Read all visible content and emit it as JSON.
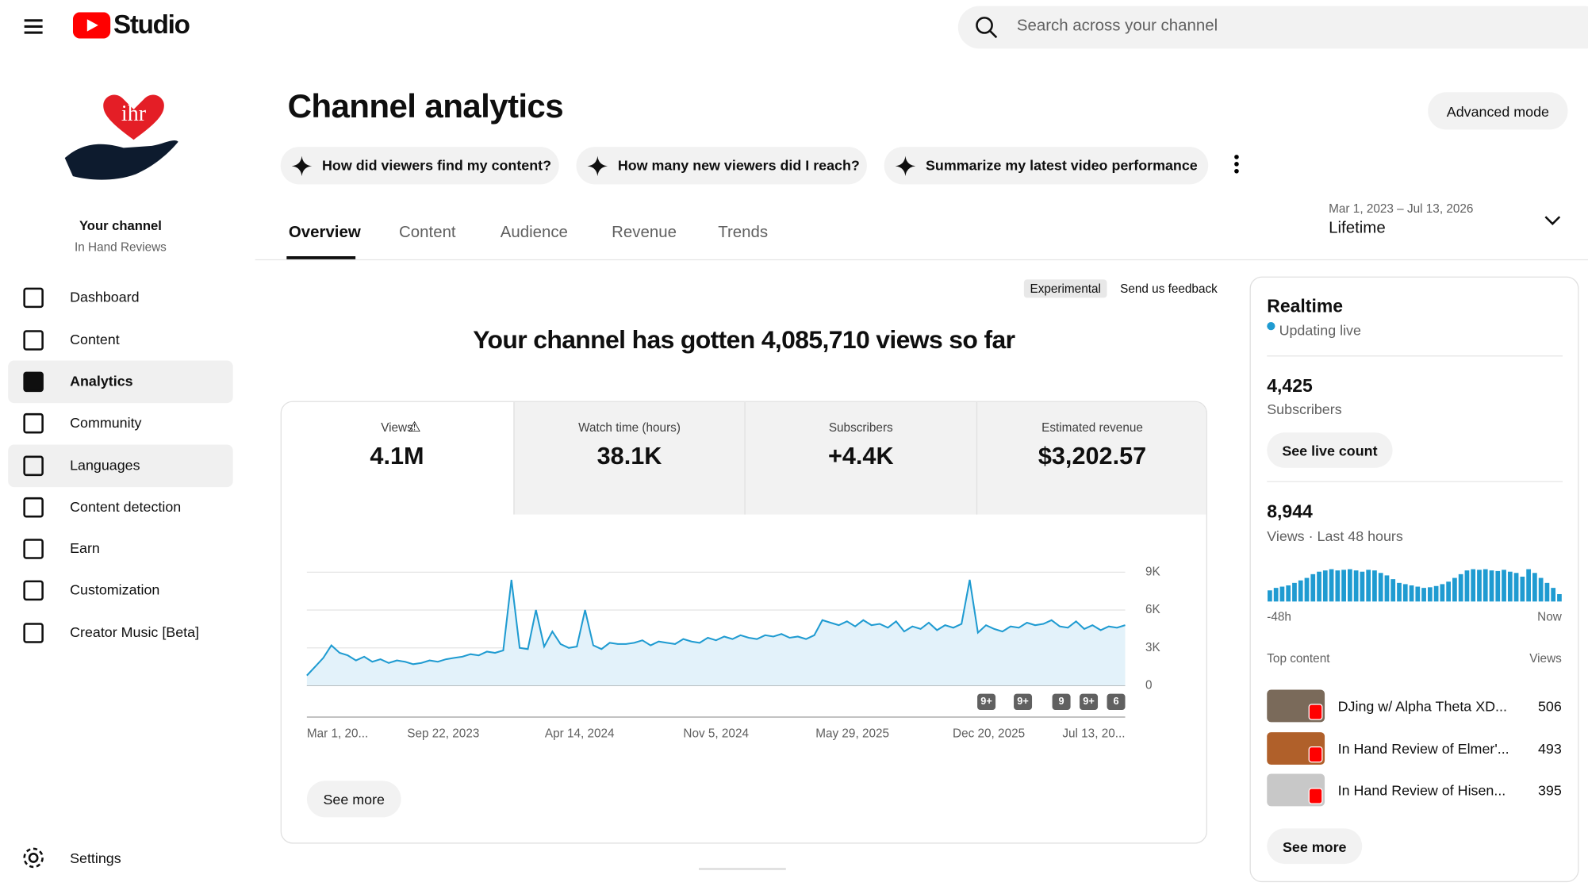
{
  "header": {
    "logo_text": "Studio",
    "search_placeholder": "Search across your channel"
  },
  "sidebar": {
    "logo_text": "ihr",
    "channel_label": "Your channel",
    "channel_name": "In Hand Reviews",
    "nav": [
      {
        "label": "Dashboard",
        "highlighted": false
      },
      {
        "label": "Content",
        "highlighted": false
      },
      {
        "label": "Analytics",
        "highlighted": true
      },
      {
        "label": "Community",
        "highlighted": false
      },
      {
        "label": "Languages",
        "highlighted": true
      },
      {
        "label": "Content detection",
        "highlighted": false
      },
      {
        "label": "Earn",
        "highlighted": false
      },
      {
        "label": "Customization",
        "highlighted": false
      },
      {
        "label": "Creator Music [Beta]",
        "highlighted": false
      }
    ],
    "settings": "Settings"
  },
  "main": {
    "title": "Channel analytics",
    "advanced_mode": "Advanced mode",
    "prompts": [
      "How did viewers find my content?",
      "How many new viewers did I reach?",
      "Summarize my latest video performance"
    ],
    "tabs": [
      "Overview",
      "Content",
      "Audience",
      "Revenue",
      "Trends"
    ],
    "date_range": "Mar 1, 2023 – Jul 13, 2026",
    "period": "Lifetime",
    "experimental": "Experimental",
    "feedback": "Send us feedback",
    "headline": "Your channel has gotten 4,085,710 views so far",
    "metrics": [
      {
        "label": "Views",
        "value": "4.1M"
      },
      {
        "label": "Watch time (hours)",
        "value": "38.1K"
      },
      {
        "label": "Subscribers",
        "value": "+4.4K"
      },
      {
        "label": "Estimated revenue",
        "value": "$3,202.57"
      }
    ],
    "see_more": "See more"
  },
  "chart_data": {
    "type": "line",
    "color": "#1f9bd1",
    "grid": true,
    "x_labels": [
      "Mar 1, 20...",
      "Sep 22, 2023",
      "Apr 14, 2024",
      "Nov 5, 2024",
      "May 29, 2025",
      "Dec 20, 2025",
      "Jul 13, 20..."
    ],
    "ylim": [
      0,
      9000
    ],
    "yticks": [
      0,
      {
        "value": 3000,
        "label": "3K"
      },
      {
        "value": 6000,
        "label": "6K"
      },
      {
        "value": 9000,
        "label": "9K"
      }
    ],
    "markers": [
      "9+",
      "9+",
      "9",
      "9+",
      "6"
    ],
    "values": [
      800,
      1500,
      2200,
      3200,
      2600,
      2400,
      2000,
      2300,
      1900,
      2100,
      1800,
      2000,
      1900,
      1700,
      1800,
      2000,
      1900,
      2100,
      2200,
      2300,
      2500,
      2400,
      2700,
      2600,
      2800,
      8400,
      3000,
      2900,
      6000,
      3100,
      4300,
      3300,
      3000,
      3100,
      6000,
      3200,
      2900,
      3400,
      3300,
      3300,
      3400,
      3600,
      3200,
      3500,
      3400,
      3300,
      3700,
      3500,
      3400,
      3800,
      3600,
      3900,
      3700,
      4000,
      3800,
      3700,
      4000,
      3900,
      4100,
      3800,
      3900,
      3700,
      4000,
      5200,
      5000,
      4800,
      5100,
      4700,
      5200,
      4800,
      4900,
      4600,
      5100,
      4300,
      4700,
      4500,
      5000,
      4400,
      4800,
      4600,
      4900,
      8400,
      4200,
      4800,
      4500,
      4300,
      4700,
      4600,
      5000,
      4800,
      4900,
      5200,
      4700,
      4600,
      5100,
      4500,
      4800,
      4400,
      4700,
      4600,
      4800
    ]
  },
  "realtime": {
    "title": "Realtime",
    "status": "Updating live",
    "subscribers_value": "4,425",
    "subscribers_label": "Subscribers",
    "see_live_count": "See live count",
    "views_value": "8,944",
    "views_label": "Views · Last 48 hours",
    "bars": {
      "type": "bar",
      "color": "#1f9bd1",
      "start_label": "-48h",
      "end_label": "Now",
      "values": [
        90,
        110,
        120,
        130,
        150,
        170,
        190,
        220,
        240,
        250,
        260,
        250,
        255,
        260,
        250,
        240,
        255,
        250,
        230,
        210,
        180,
        150,
        140,
        130,
        120,
        110,
        115,
        125,
        140,
        160,
        190,
        220,
        250,
        260,
        255,
        260,
        250,
        245,
        255,
        240,
        230,
        200,
        260,
        230,
        190,
        150,
        110,
        60
      ]
    },
    "top_content_label": "Top content",
    "views_label_col": "Views",
    "items": [
      {
        "title": "DJing w/ Alpha Theta XD...",
        "views": 506
      },
      {
        "title": "In Hand Review of Elmer'...",
        "views": 493
      },
      {
        "title": "In Hand Review of Hisen...",
        "views": 395
      }
    ],
    "see_more": "See more"
  }
}
